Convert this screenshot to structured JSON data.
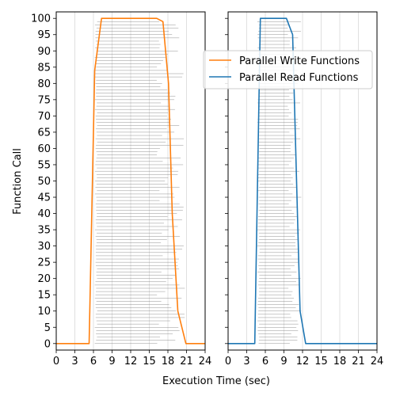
{
  "chart_data": [
    {
      "type": "line",
      "panel": "left",
      "xlabel": "",
      "ylabel": "Function Call",
      "xlim": [
        0,
        24
      ],
      "ylim": [
        -2,
        102
      ],
      "xticks": [
        0,
        3,
        6,
        9,
        12,
        15,
        18,
        21,
        24
      ],
      "yticks": [
        0,
        5,
        10,
        15,
        20,
        25,
        30,
        35,
        40,
        45,
        50,
        55,
        60,
        65,
        70,
        75,
        80,
        85,
        90,
        95,
        100
      ],
      "grid": "vertical",
      "series": [
        {
          "name": "Parallel Write Functions",
          "color": "#ff7f0e",
          "x": [
            0,
            5.3,
            6.2,
            7.3,
            16.2,
            17.2,
            18.1,
            18.7,
            19.6,
            20.9,
            24
          ],
          "y": [
            0,
            0,
            84,
            100,
            100,
            99,
            80,
            40,
            10,
            0,
            0
          ]
        }
      ],
      "call_bars": {
        "color": "#808080",
        "count": 100,
        "start_from": 6.2,
        "end_min": 16.2,
        "end_max": 20.9
      }
    },
    {
      "type": "line",
      "panel": "right",
      "xlabel": "",
      "ylabel": "",
      "xlim": [
        0,
        24
      ],
      "ylim": [
        -2,
        102
      ],
      "xticks": [
        0,
        3,
        6,
        9,
        12,
        15,
        18,
        21,
        24
      ],
      "grid": "vertical",
      "series": [
        {
          "name": "Parallel Read Functions",
          "color": "#1f77b4",
          "x": [
            0,
            4.3,
            5.2,
            9.4,
            10.4,
            11.6,
            12.5,
            24
          ],
          "y": [
            0,
            0,
            100,
            100,
            95,
            10,
            0,
            0
          ]
        }
      ],
      "call_bars": {
        "color": "#808080",
        "count": 100,
        "start_from": 4.7,
        "end_min": 9.6,
        "end_max": 11.8
      }
    }
  ],
  "shared_xlabel": "Execution Time (sec)",
  "legend": {
    "placement": "upper-right",
    "entries": [
      {
        "label": "Parallel Write Functions",
        "color": "#ff7f0e"
      },
      {
        "label": "Parallel Read Functions",
        "color": "#1f77b4"
      }
    ]
  }
}
